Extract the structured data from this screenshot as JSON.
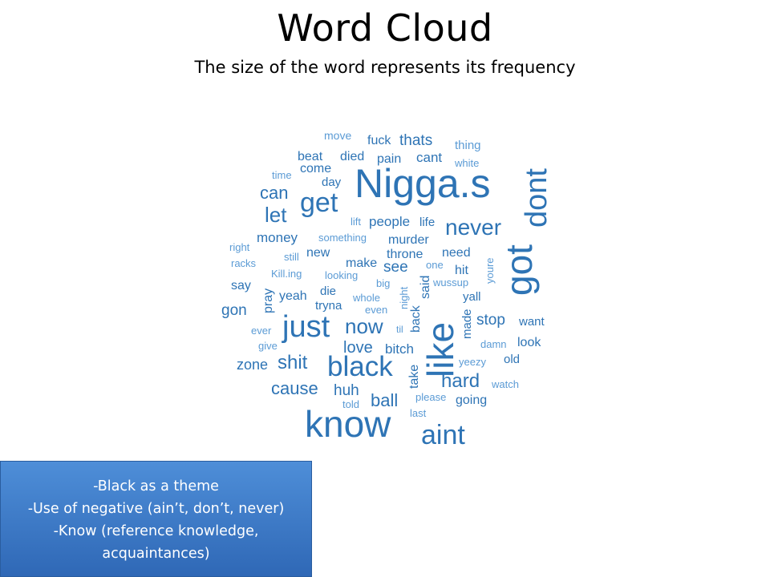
{
  "title": "Word Cloud",
  "subtitle": "The size of the word represents its frequency",
  "notes": [
    "-Black as a theme",
    "-Use of negative (ain’t, don’t, never)",
    "-Know (reference knowledge,",
    "acquaintances)"
  ],
  "colors": {
    "dark": "#2e74b5",
    "light": "#5b9bd5",
    "note_bg": "#3a7bd0"
  },
  "words": [
    {
      "text": "Nigga.s",
      "tone": "dark"
    },
    {
      "text": "know",
      "tone": "dark"
    },
    {
      "text": "like",
      "tone": "dark"
    },
    {
      "text": "got",
      "tone": "dark"
    },
    {
      "text": "dont",
      "tone": "dark"
    },
    {
      "text": "just",
      "tone": "dark"
    },
    {
      "text": "black",
      "tone": "dark"
    },
    {
      "text": "aint",
      "tone": "dark"
    },
    {
      "text": "get",
      "tone": "dark"
    },
    {
      "text": "never",
      "tone": "dark"
    },
    {
      "text": "now",
      "tone": "dark"
    },
    {
      "text": "let",
      "tone": "dark"
    },
    {
      "text": "can",
      "tone": "dark"
    },
    {
      "text": "shit",
      "tone": "dark"
    },
    {
      "text": "cause",
      "tone": "dark"
    },
    {
      "text": "hard",
      "tone": "dark"
    },
    {
      "text": "ball",
      "tone": "dark"
    },
    {
      "text": "love",
      "tone": "dark"
    },
    {
      "text": "huh",
      "tone": "dark"
    },
    {
      "text": "stop",
      "tone": "dark"
    },
    {
      "text": "thats",
      "tone": "dark"
    },
    {
      "text": "see",
      "tone": "dark"
    },
    {
      "text": "zone",
      "tone": "dark"
    },
    {
      "text": "gon",
      "tone": "dark"
    },
    {
      "text": "money",
      "tone": "dark"
    },
    {
      "text": "bitch",
      "tone": "dark"
    },
    {
      "text": "cant",
      "tone": "dark"
    },
    {
      "text": "people",
      "tone": "dark"
    },
    {
      "text": "murder",
      "tone": "dark"
    },
    {
      "text": "throne",
      "tone": "dark"
    },
    {
      "text": "need",
      "tone": "dark"
    },
    {
      "text": "hit",
      "tone": "dark"
    },
    {
      "text": "new",
      "tone": "dark"
    },
    {
      "text": "make",
      "tone": "dark"
    },
    {
      "text": "fuck",
      "tone": "dark"
    },
    {
      "text": "beat",
      "tone": "dark"
    },
    {
      "text": "died",
      "tone": "dark"
    },
    {
      "text": "pain",
      "tone": "dark"
    },
    {
      "text": "come",
      "tone": "dark"
    },
    {
      "text": "day",
      "tone": "dark"
    },
    {
      "text": "say",
      "tone": "dark"
    },
    {
      "text": "yeah",
      "tone": "dark"
    },
    {
      "text": "die",
      "tone": "dark"
    },
    {
      "text": "tryna",
      "tone": "dark"
    },
    {
      "text": "yall",
      "tone": "dark"
    },
    {
      "text": "look",
      "tone": "dark"
    },
    {
      "text": "want",
      "tone": "dark"
    },
    {
      "text": "old",
      "tone": "dark"
    },
    {
      "text": "going",
      "tone": "dark"
    },
    {
      "text": "back",
      "tone": "dark"
    },
    {
      "text": "take",
      "tone": "dark"
    },
    {
      "text": "said",
      "tone": "dark"
    },
    {
      "text": "pray",
      "tone": "dark"
    },
    {
      "text": "made",
      "tone": "dark"
    },
    {
      "text": "life",
      "tone": "dark"
    },
    {
      "text": "move",
      "tone": "light"
    },
    {
      "text": "thing",
      "tone": "light"
    },
    {
      "text": "white",
      "tone": "light"
    },
    {
      "text": "time",
      "tone": "light"
    },
    {
      "text": "lift",
      "tone": "light"
    },
    {
      "text": "something",
      "tone": "light"
    },
    {
      "text": "right",
      "tone": "light"
    },
    {
      "text": "racks",
      "tone": "light"
    },
    {
      "text": "still",
      "tone": "light"
    },
    {
      "text": "Kill.ing",
      "tone": "light"
    },
    {
      "text": "looking",
      "tone": "light"
    },
    {
      "text": "one",
      "tone": "light"
    },
    {
      "text": "big",
      "tone": "light"
    },
    {
      "text": "wussup",
      "tone": "light"
    },
    {
      "text": "youre",
      "tone": "light"
    },
    {
      "text": "night",
      "tone": "light"
    },
    {
      "text": "whole",
      "tone": "light"
    },
    {
      "text": "even",
      "tone": "light"
    },
    {
      "text": "ever",
      "tone": "light"
    },
    {
      "text": "til",
      "tone": "light"
    },
    {
      "text": "give",
      "tone": "light"
    },
    {
      "text": "damn",
      "tone": "light"
    },
    {
      "text": "yeezy",
      "tone": "light"
    },
    {
      "text": "watch",
      "tone": "light"
    },
    {
      "text": "please",
      "tone": "light"
    },
    {
      "text": "told",
      "tone": "light"
    },
    {
      "text": "last",
      "tone": "light"
    }
  ]
}
